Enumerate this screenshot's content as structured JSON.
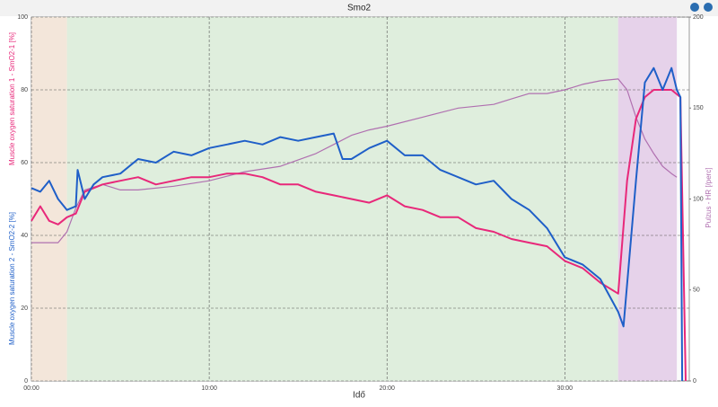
{
  "chart_data": {
    "type": "line",
    "title": "Smo2",
    "x_label": "Idő",
    "xlim": [
      0,
      37
    ],
    "xticks": [
      {
        "value": 0,
        "label": "00:00"
      },
      {
        "value": 10,
        "label": "10:00"
      },
      {
        "value": 20,
        "label": "20:00"
      },
      {
        "value": 30,
        "label": "30:00"
      }
    ],
    "ylim": [
      0,
      100
    ],
    "yticks": [
      0,
      20,
      40,
      60,
      80,
      100
    ],
    "y2lim": [
      0,
      200
    ],
    "y2ticks": [
      0,
      50,
      100,
      150,
      200
    ],
    "grid": true,
    "shaded_ranges": [
      {
        "from": 0,
        "to": 2,
        "color": "#f3e6da"
      },
      {
        "from": 2,
        "to": 33,
        "color": "#dfeedd"
      },
      {
        "from": 33,
        "to": 36.3,
        "color": "#e6d2ea"
      }
    ],
    "series": [
      {
        "name": "Muscle oxygen saturation 1 - SmO2-1 [%]",
        "color": "#e8287a",
        "x": [
          0,
          0.5,
          1,
          1.5,
          2,
          2.5,
          3,
          4,
          5,
          6,
          7,
          8,
          9,
          10,
          11,
          12,
          13,
          14,
          15,
          16,
          17,
          18,
          19,
          20,
          21,
          22,
          23,
          24,
          25,
          26,
          27,
          28,
          29,
          30,
          31,
          32,
          33,
          33.5,
          34,
          34.5,
          35,
          36,
          36.5,
          36.8
        ],
        "values": [
          44,
          48,
          44,
          43,
          45,
          46,
          52,
          54,
          55,
          56,
          54,
          55,
          56,
          56,
          57,
          57,
          56,
          54,
          54,
          52,
          51,
          50,
          49,
          51,
          48,
          47,
          45,
          45,
          42,
          41,
          39,
          38,
          37,
          33,
          31,
          27,
          24,
          55,
          72,
          78,
          80,
          80,
          78,
          0
        ]
      },
      {
        "name": "Muscle oxygen saturation 2 - SmO2-2 [%]",
        "color": "#1f5fc8",
        "x": [
          0,
          0.5,
          1,
          1.5,
          2,
          2.5,
          2.6,
          3,
          3.5,
          4,
          5,
          6,
          7,
          8,
          9,
          10,
          11,
          12,
          13,
          14,
          15,
          16,
          17,
          17.5,
          18,
          19,
          20,
          21,
          22,
          23,
          24,
          25,
          26,
          27,
          28,
          29,
          30,
          31,
          32,
          33,
          33.3,
          34,
          34.5,
          35,
          35.5,
          36,
          36.3,
          36.5,
          36.6
        ],
        "values": [
          53,
          52,
          55,
          50,
          47,
          48,
          58,
          50,
          54,
          56,
          57,
          61,
          60,
          63,
          62,
          64,
          65,
          66,
          65,
          67,
          66,
          67,
          68,
          61,
          61,
          64,
          66,
          62,
          62,
          58,
          56,
          54,
          55,
          50,
          47,
          42,
          34,
          32,
          28,
          19,
          15,
          55,
          82,
          86,
          80,
          86,
          80,
          78,
          0
        ]
      },
      {
        "name": "Pulzus - HR [/perc]",
        "color": "#b070b0",
        "axis": "y2",
        "x": [
          0,
          1.5,
          2,
          2.5,
          3,
          4,
          5,
          6,
          8,
          10,
          12,
          14,
          16,
          17,
          18,
          19,
          20,
          22,
          24,
          26,
          27,
          28,
          29,
          30,
          31,
          32,
          33,
          33.5,
          34,
          34.5,
          35,
          35.5,
          36,
          36.3
        ],
        "values": [
          76,
          76,
          82,
          95,
          105,
          108,
          105,
          105,
          107,
          110,
          115,
          118,
          125,
          130,
          135,
          138,
          140,
          145,
          150,
          152,
          155,
          158,
          158,
          160,
          163,
          165,
          166,
          160,
          145,
          133,
          125,
          118,
          114,
          112
        ]
      }
    ]
  }
}
